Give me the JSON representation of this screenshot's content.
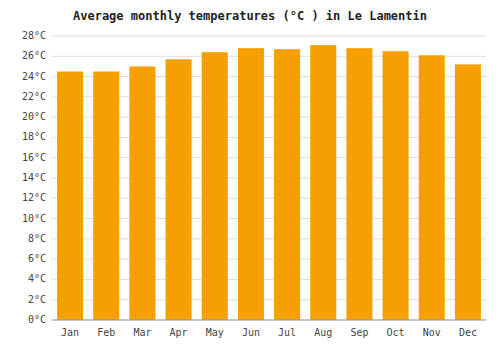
{
  "chart_data": {
    "type": "bar",
    "title": "Average monthly temperatures (°C ) in Le Lamentin",
    "categories": [
      "Jan",
      "Feb",
      "Mar",
      "Apr",
      "May",
      "Jun",
      "Jul",
      "Aug",
      "Sep",
      "Oct",
      "Nov",
      "Dec"
    ],
    "values": [
      24.5,
      24.5,
      25.0,
      25.7,
      26.4,
      26.8,
      26.7,
      27.1,
      26.8,
      26.5,
      26.1,
      25.2
    ],
    "color": "#F5A000",
    "ylim": [
      0,
      28
    ],
    "yticks": [
      {
        "value": 0,
        "label": "0°C"
      },
      {
        "value": 2,
        "label": "2°C"
      },
      {
        "value": 4,
        "label": "4°C"
      },
      {
        "value": 6,
        "label": "6°C"
      },
      {
        "value": 8,
        "label": "8°C"
      },
      {
        "value": 10,
        "label": "10°C"
      },
      {
        "value": 12,
        "label": "12°C"
      },
      {
        "value": 14,
        "label": "14°C"
      },
      {
        "value": 16,
        "label": "16°C"
      },
      {
        "value": 18,
        "label": "18°C"
      },
      {
        "value": 20,
        "label": "20°C"
      },
      {
        "value": 22,
        "label": "22°C"
      },
      {
        "value": 24,
        "label": "24°C"
      },
      {
        "value": 26,
        "label": "26°C"
      },
      {
        "value": 28,
        "label": "28°C"
      }
    ],
    "grid": true
  }
}
